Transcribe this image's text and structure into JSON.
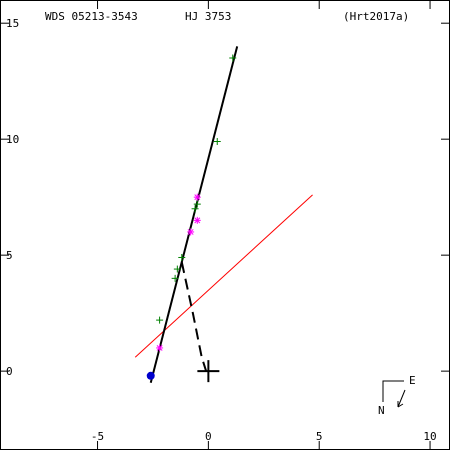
{
  "header": {
    "wds_id": "WDS 05213-3543",
    "discoverer": "HJ 3753",
    "reference": "(Hrt2017a)"
  },
  "compass": {
    "north": "N",
    "east": "E"
  },
  "colors": {
    "frame": "#000000",
    "orbit": "#000000",
    "green_obs": "#008000",
    "magenta_obs": "#ff00ff",
    "first_obs": "#0000cc",
    "red_line": "#ff0000"
  },
  "chart_data": {
    "type": "scatter",
    "x_range": [
      -9.4,
      10.9
    ],
    "y_range": [
      -3.4,
      16.0
    ],
    "x_ticks": [
      -5,
      0,
      5,
      10
    ],
    "y_ticks": [
      0,
      5,
      10,
      15
    ],
    "x_tick_labels": [
      "-5",
      "0",
      "5",
      "10"
    ],
    "y_tick_labels": [
      "0",
      "5",
      "10",
      "15"
    ],
    "grid": false,
    "primary_star": [
      0,
      0
    ],
    "orbit_arc": [
      [
        -2.6,
        -0.5
      ],
      [
        1.3,
        14.0
      ]
    ],
    "dashed_connector": [
      [
        -1.2,
        4.7
      ],
      [
        -0.7,
        2.5
      ],
      [
        -0.3,
        0.6
      ],
      [
        -0.1,
        0.0
      ]
    ],
    "green_observations": [
      [
        -2.2,
        2.2
      ],
      [
        -1.5,
        4.0
      ],
      [
        -1.2,
        4.9
      ],
      [
        -1.4,
        4.4
      ],
      [
        -0.6,
        7.0
      ],
      [
        -0.5,
        7.2
      ],
      [
        0.4,
        9.9
      ],
      [
        1.1,
        13.5
      ]
    ],
    "magenta_observations": [
      [
        -2.2,
        1.0
      ],
      [
        -0.8,
        6.0
      ],
      [
        -0.5,
        6.5
      ],
      [
        -0.5,
        7.5
      ]
    ],
    "first_observation": [
      -2.6,
      -0.2
    ],
    "red_line": [
      [
        -3.3,
        0.6
      ],
      [
        4.7,
        7.6
      ]
    ]
  }
}
